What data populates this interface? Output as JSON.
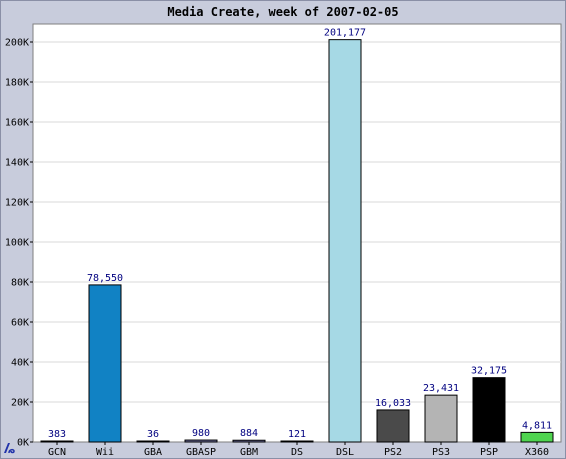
{
  "chart_data": {
    "type": "bar",
    "title": "Media Create, week of 2007-02-05",
    "categories": [
      "GCN",
      "Wii",
      "GBA",
      "GBASP",
      "GBM",
      "DS",
      "DSL",
      "PS2",
      "PS3",
      "PSP",
      "X360"
    ],
    "values": [
      383,
      78550,
      36,
      980,
      884,
      121,
      201177,
      16033,
      23431,
      32175,
      4811
    ],
    "value_labels": [
      "383",
      "78,550",
      "36",
      "980",
      "884",
      "121",
      "201,177",
      "16,033",
      "23,431",
      "32,175",
      "4,811"
    ],
    "colors": [
      "#6f6fa0",
      "#1182c4",
      "#6f6fa0",
      "#6f6fa0",
      "#6f6fa0",
      "#6f6fa0",
      "#a6d9e5",
      "#4a4a4a",
      "#b4b4b4",
      "#000000",
      "#4fd44f"
    ],
    "ylim": [
      0,
      210000
    ],
    "yticks": [
      0,
      20000,
      40000,
      60000,
      80000,
      100000,
      120000,
      140000,
      160000,
      180000,
      200000
    ],
    "ytick_labels": [
      "0K",
      "20K",
      "40K",
      "60K",
      "80K",
      "100K",
      "120K",
      "140K",
      "160K",
      "180K",
      "200K"
    ],
    "grid": true,
    "xlabel": "",
    "ylabel": ""
  }
}
